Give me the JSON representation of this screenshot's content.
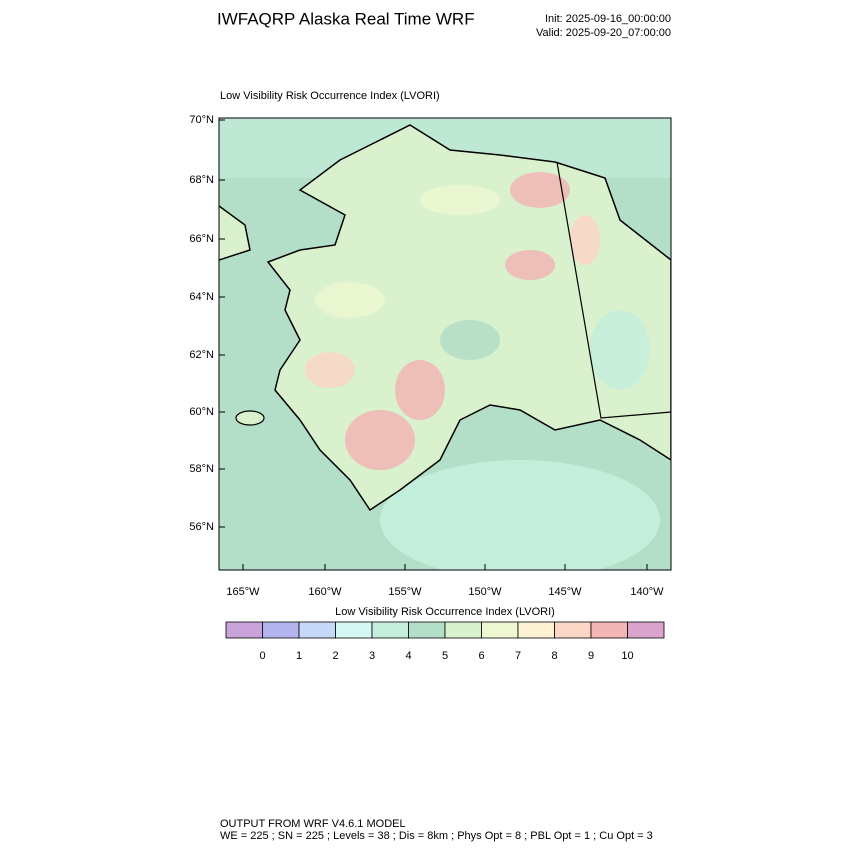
{
  "header": {
    "title": "IWFAQRP Alaska Real Time WRF",
    "init": "Init: 2025-09-16_00:00:00",
    "valid": "Valid: 2025-09-20_07:00:00"
  },
  "map": {
    "title": "Low Visibility Risk Occurrence Index   (LVORI)",
    "lat_labels": [
      "70°N",
      "68°N",
      "66°N",
      "64°N",
      "62°N",
      "60°N",
      "58°N",
      "56°N"
    ],
    "lon_labels": [
      "165°W",
      "160°W",
      "155°W",
      "150°W",
      "145°W",
      "140°W"
    ]
  },
  "colorbar": {
    "title": "Low Visibility Risk Occurrence Index  (LVORI)",
    "labels": [
      0,
      1,
      2,
      3,
      4,
      5,
      6,
      7,
      8,
      9,
      10
    ],
    "colors": [
      "#c9a3da",
      "#b4b4ee",
      "#c7d9f8",
      "#d4f8f4",
      "#c4eedc",
      "#b3dec8",
      "#d9f1cc",
      "#eef7d0",
      "#fdf2d4",
      "#fbd6c7",
      "#f2b6b6",
      "#dba4cd"
    ]
  },
  "footer": {
    "line1": "OUTPUT FROM WRF V4.6.1 MODEL",
    "line2": "WE = 225 ; SN = 225 ; Levels = 38 ; Dis = 8km ; Phys Opt = 8 ; PBL Opt = 1 ; Cu Opt = 3"
  }
}
